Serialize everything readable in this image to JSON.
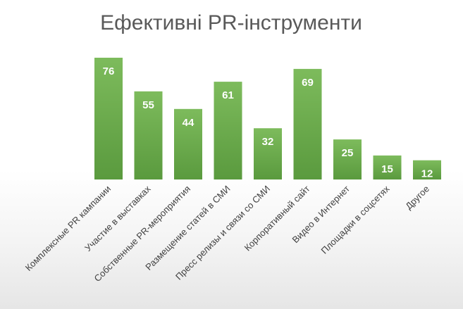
{
  "chart_data": {
    "type": "bar",
    "title": "Ефективні PR-інструменти",
    "categories": [
      "Комплексные PR кампании",
      "Участие в выставках",
      "Собственные PR-мероприятия",
      "Размещение статей в СМИ",
      "Пресс релизы и связи со СМИ",
      "Корпоративный сайт",
      "Видео в Интернет",
      "Площадки в соцсетях",
      "Другое"
    ],
    "values": [
      76,
      55,
      44,
      61,
      32,
      69,
      25,
      15,
      12
    ],
    "data_labels": [
      "76",
      "55",
      "44",
      "61",
      "32",
      "69",
      "25",
      "15",
      "12"
    ],
    "xlabel": "",
    "ylabel": "",
    "ylim": [
      0,
      76
    ],
    "grid": false,
    "legend": "none",
    "bar_color": "#6aa84f",
    "bar_gradient_top": "#7dbb5c",
    "bar_gradient_bottom": "#5a9a3e"
  }
}
